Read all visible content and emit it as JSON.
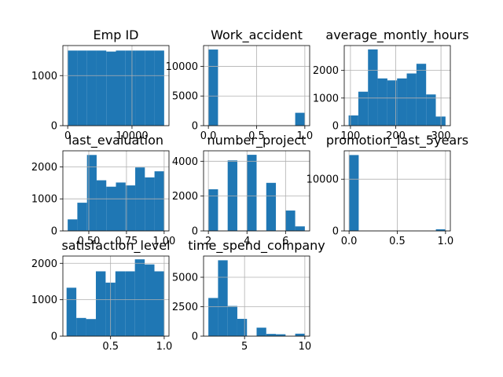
{
  "colors": {
    "bar": "#1f77b4",
    "grid": "#b0b0b0",
    "axis": "#000000"
  },
  "chart_data": [
    {
      "type": "bar",
      "title": "Emp ID",
      "grid": true,
      "xlim": [
        -750,
        15750
      ],
      "ylim": [
        0,
        1600
      ],
      "xticks": [
        {
          "value": 0,
          "label": "0"
        },
        {
          "value": 10000,
          "label": "10000"
        }
      ],
      "yticks": [
        {
          "value": 0,
          "label": "0"
        },
        {
          "value": 1000,
          "label": "1000"
        }
      ],
      "bins": [
        {
          "x0": 0,
          "x1": 1500,
          "value": 1500
        },
        {
          "x0": 1500,
          "x1": 3000,
          "value": 1500
        },
        {
          "x0": 3000,
          "x1": 4500,
          "value": 1500
        },
        {
          "x0": 4500,
          "x1": 6000,
          "value": 1500
        },
        {
          "x0": 6000,
          "x1": 7500,
          "value": 1480
        },
        {
          "x0": 7500,
          "x1": 9000,
          "value": 1500
        },
        {
          "x0": 9000,
          "x1": 10500,
          "value": 1500
        },
        {
          "x0": 10500,
          "x1": 12000,
          "value": 1500
        },
        {
          "x0": 12000,
          "x1": 13500,
          "value": 1500
        },
        {
          "x0": 13500,
          "x1": 15000,
          "value": 1500
        }
      ]
    },
    {
      "type": "bar",
      "title": "Work_accident",
      "grid": true,
      "xlim": [
        -0.05,
        1.05
      ],
      "ylim": [
        0,
        13500
      ],
      "xticks": [
        {
          "value": 0,
          "label": "0.0"
        },
        {
          "value": 0.5,
          "label": "0.5"
        },
        {
          "value": 1,
          "label": "1.0"
        }
      ],
      "yticks": [
        {
          "value": 0,
          "label": "0"
        },
        {
          "value": 5000,
          "label": "5000"
        },
        {
          "value": 10000,
          "label": "10000"
        }
      ],
      "bins": [
        {
          "x0": 0,
          "x1": 0.1,
          "value": 12830
        },
        {
          "x0": 0.1,
          "x1": 0.2,
          "value": 0
        },
        {
          "x0": 0.2,
          "x1": 0.3,
          "value": 0
        },
        {
          "x0": 0.3,
          "x1": 0.4,
          "value": 0
        },
        {
          "x0": 0.4,
          "x1": 0.5,
          "value": 0
        },
        {
          "x0": 0.5,
          "x1": 0.6,
          "value": 0
        },
        {
          "x0": 0.6,
          "x1": 0.7,
          "value": 0
        },
        {
          "x0": 0.7,
          "x1": 0.8,
          "value": 0
        },
        {
          "x0": 0.8,
          "x1": 0.9,
          "value": 0
        },
        {
          "x0": 0.9,
          "x1": 1.0,
          "value": 2170
        }
      ]
    },
    {
      "type": "bar",
      "title": "average_montly_hours",
      "grid": true,
      "xlim": [
        86.3,
        320.7
      ],
      "ylim": [
        0,
        2900
      ],
      "xticks": [
        {
          "value": 100,
          "label": "100"
        },
        {
          "value": 200,
          "label": "200"
        },
        {
          "value": 300,
          "label": "300"
        }
      ],
      "yticks": [
        {
          "value": 0,
          "label": "0"
        },
        {
          "value": 1000,
          "label": "1000"
        },
        {
          "value": 2000,
          "label": "2000"
        }
      ],
      "bins": [
        {
          "x0": 96,
          "x1": 117.4,
          "value": 370
        },
        {
          "x0": 117.4,
          "x1": 138.8,
          "value": 1230
        },
        {
          "x0": 138.8,
          "x1": 160.2,
          "value": 2760
        },
        {
          "x0": 160.2,
          "x1": 181.6,
          "value": 1710
        },
        {
          "x0": 181.6,
          "x1": 203.0,
          "value": 1640
        },
        {
          "x0": 203.0,
          "x1": 224.4,
          "value": 1710
        },
        {
          "x0": 224.4,
          "x1": 245.8,
          "value": 1890
        },
        {
          "x0": 245.8,
          "x1": 267.2,
          "value": 2240
        },
        {
          "x0": 267.2,
          "x1": 288.6,
          "value": 1130
        },
        {
          "x0": 288.6,
          "x1": 310,
          "value": 330
        }
      ]
    },
    {
      "type": "bar",
      "title": "last_evaluation",
      "grid": true,
      "xlim": [
        0.328,
        1.032
      ],
      "ylim": [
        0,
        2500
      ],
      "xticks": [
        {
          "value": 0.5,
          "label": "0.50"
        },
        {
          "value": 0.75,
          "label": "0.75"
        },
        {
          "value": 1.0,
          "label": "1.00"
        }
      ],
      "yticks": [
        {
          "value": 0,
          "label": "0"
        },
        {
          "value": 1000,
          "label": "1000"
        },
        {
          "value": 2000,
          "label": "2000"
        }
      ],
      "bins": [
        {
          "x0": 0.36,
          "x1": 0.424,
          "value": 360
        },
        {
          "x0": 0.424,
          "x1": 0.488,
          "value": 880
        },
        {
          "x0": 0.488,
          "x1": 0.552,
          "value": 2370
        },
        {
          "x0": 0.552,
          "x1": 0.616,
          "value": 1580
        },
        {
          "x0": 0.616,
          "x1": 0.68,
          "value": 1380
        },
        {
          "x0": 0.68,
          "x1": 0.744,
          "value": 1510
        },
        {
          "x0": 0.744,
          "x1": 0.808,
          "value": 1420
        },
        {
          "x0": 0.808,
          "x1": 0.872,
          "value": 1980
        },
        {
          "x0": 0.872,
          "x1": 0.936,
          "value": 1670
        },
        {
          "x0": 0.936,
          "x1": 1.0,
          "value": 1860
        }
      ]
    },
    {
      "type": "bar",
      "title": "number_project",
      "grid": true,
      "xlim": [
        1.75,
        7.25
      ],
      "ylim": [
        0,
        4600
      ],
      "xticks": [
        {
          "value": 2,
          "label": "2"
        },
        {
          "value": 4,
          "label": "4"
        },
        {
          "value": 6,
          "label": "6"
        }
      ],
      "yticks": [
        {
          "value": 0,
          "label": "0"
        },
        {
          "value": 2000,
          "label": "2000"
        },
        {
          "value": 4000,
          "label": "4000"
        }
      ],
      "bins": [
        {
          "x0": 2.0,
          "x1": 2.5,
          "value": 2390
        },
        {
          "x0": 2.5,
          "x1": 3.0,
          "value": 0
        },
        {
          "x0": 3.0,
          "x1": 3.5,
          "value": 4050
        },
        {
          "x0": 3.5,
          "x1": 4.0,
          "value": 0
        },
        {
          "x0": 4.0,
          "x1": 4.5,
          "value": 4370
        },
        {
          "x0": 4.5,
          "x1": 5.0,
          "value": 0
        },
        {
          "x0": 5.0,
          "x1": 5.5,
          "value": 2760
        },
        {
          "x0": 5.5,
          "x1": 6.0,
          "value": 0
        },
        {
          "x0": 6.0,
          "x1": 6.5,
          "value": 1170
        },
        {
          "x0": 6.5,
          "x1": 7.0,
          "value": 260
        }
      ]
    },
    {
      "type": "bar",
      "title": "promotion_last_5years",
      "grid": true,
      "xlim": [
        -0.05,
        1.05
      ],
      "ylim": [
        0,
        15500
      ],
      "xticks": [
        {
          "value": 0,
          "label": "0.0"
        },
        {
          "value": 0.5,
          "label": "0.5"
        },
        {
          "value": 1,
          "label": "1.0"
        }
      ],
      "yticks": [
        {
          "value": 0,
          "label": "0"
        },
        {
          "value": 10000,
          "label": "10000"
        }
      ],
      "bins": [
        {
          "x0": 0,
          "x1": 0.1,
          "value": 14680
        },
        {
          "x0": 0.1,
          "x1": 0.2,
          "value": 0
        },
        {
          "x0": 0.2,
          "x1": 0.3,
          "value": 0
        },
        {
          "x0": 0.3,
          "x1": 0.4,
          "value": 0
        },
        {
          "x0": 0.4,
          "x1": 0.5,
          "value": 0
        },
        {
          "x0": 0.5,
          "x1": 0.6,
          "value": 0
        },
        {
          "x0": 0.6,
          "x1": 0.7,
          "value": 0
        },
        {
          "x0": 0.7,
          "x1": 0.8,
          "value": 0
        },
        {
          "x0": 0.8,
          "x1": 0.9,
          "value": 0
        },
        {
          "x0": 0.9,
          "x1": 1.0,
          "value": 320
        }
      ]
    },
    {
      "type": "bar",
      "title": "satisfaction_level",
      "grid": true,
      "xlim": [
        0.0555,
        1.0445
      ],
      "ylim": [
        0,
        2200
      ],
      "xticks": [
        {
          "value": 0.5,
          "label": "0.5"
        },
        {
          "value": 1.0,
          "label": "1.0"
        }
      ],
      "yticks": [
        {
          "value": 0,
          "label": "0"
        },
        {
          "value": 1000,
          "label": "1000"
        },
        {
          "value": 2000,
          "label": "2000"
        }
      ],
      "bins": [
        {
          "x0": 0.09,
          "x1": 0.181,
          "value": 1330
        },
        {
          "x0": 0.181,
          "x1": 0.272,
          "value": 500
        },
        {
          "x0": 0.272,
          "x1": 0.363,
          "value": 470
        },
        {
          "x0": 0.363,
          "x1": 0.454,
          "value": 1780
        },
        {
          "x0": 0.454,
          "x1": 0.545,
          "value": 1470
        },
        {
          "x0": 0.545,
          "x1": 0.636,
          "value": 1780
        },
        {
          "x0": 0.636,
          "x1": 0.727,
          "value": 1780
        },
        {
          "x0": 0.727,
          "x1": 0.818,
          "value": 2110
        },
        {
          "x0": 0.818,
          "x1": 0.909,
          "value": 1970
        },
        {
          "x0": 0.909,
          "x1": 1.0,
          "value": 1780
        }
      ]
    },
    {
      "type": "bar",
      "title": "time_spend_company",
      "grid": true,
      "xlim": [
        1.6,
        10.4
      ],
      "ylim": [
        0,
        6800
      ],
      "xticks": [
        {
          "value": 5,
          "label": "5"
        },
        {
          "value": 10,
          "label": "10"
        }
      ],
      "yticks": [
        {
          "value": 0,
          "label": "0"
        },
        {
          "value": 2500,
          "label": "2500"
        },
        {
          "value": 5000,
          "label": "5000"
        }
      ],
      "bins": [
        {
          "x0": 2.0,
          "x1": 2.8,
          "value": 3240
        },
        {
          "x0": 2.8,
          "x1": 3.6,
          "value": 6440
        },
        {
          "x0": 3.6,
          "x1": 4.4,
          "value": 2560
        },
        {
          "x0": 4.4,
          "x1": 5.2,
          "value": 1470
        },
        {
          "x0": 5.2,
          "x1": 6.0,
          "value": 0
        },
        {
          "x0": 6.0,
          "x1": 6.8,
          "value": 720
        },
        {
          "x0": 6.8,
          "x1": 7.6,
          "value": 190
        },
        {
          "x0": 7.6,
          "x1": 8.4,
          "value": 160
        },
        {
          "x0": 8.4,
          "x1": 9.2,
          "value": 0
        },
        {
          "x0": 9.2,
          "x1": 10.0,
          "value": 210
        }
      ]
    }
  ]
}
